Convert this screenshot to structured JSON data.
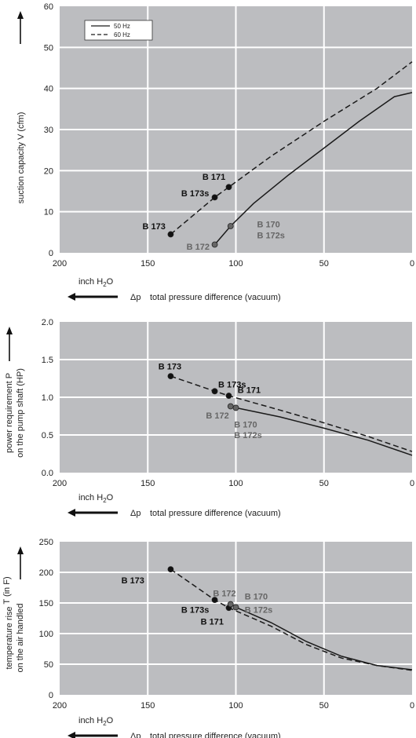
{
  "chart_data": [
    {
      "type": "line",
      "ylabel": "suction capacity V (cfm)",
      "xlabel_unit": "inch H2O",
      "xlabel_symbol": "Δp",
      "xlabel": "total pressure difference (vacuum)",
      "xlim": [
        200,
        0
      ],
      "ylim": [
        0,
        60
      ],
      "xticks": [
        "200",
        "150",
        "100",
        "50",
        "0"
      ],
      "yticks": [
        "0",
        "10",
        "20",
        "30",
        "40",
        "50",
        "60"
      ],
      "legend": [
        "50 Hz",
        "60 Hz"
      ],
      "legend_position": "top-left",
      "grid": true,
      "series": [
        {
          "name": "50 Hz",
          "style": "solid",
          "points": [
            [
              112,
              2
            ],
            [
              103,
              6.5
            ],
            [
              90,
              12
            ],
            [
              70,
              19
            ],
            [
              50,
              25.5
            ],
            [
              30,
              32
            ],
            [
              10,
              38
            ],
            [
              0,
              39
            ]
          ]
        },
        {
          "name": "60 Hz",
          "style": "dashed",
          "points": [
            [
              137,
              4.5
            ],
            [
              112,
              13.5
            ],
            [
              104,
              16
            ],
            [
              80,
              23.5
            ],
            [
              50,
              32
            ],
            [
              20,
              40
            ],
            [
              0,
              46.5
            ]
          ]
        }
      ],
      "markers": [
        {
          "x": 137,
          "y": 4.5,
          "color": "dark"
        },
        {
          "x": 112,
          "y": 13.5,
          "color": "dark"
        },
        {
          "x": 104,
          "y": 16,
          "color": "dark"
        },
        {
          "x": 112,
          "y": 2,
          "color": "grey"
        },
        {
          "x": 103,
          "y": 6.5,
          "color": "grey"
        }
      ],
      "labels": [
        {
          "text": "B 171",
          "x": 119,
          "y": 18.5,
          "color": "dark"
        },
        {
          "text": "B 173s",
          "x": 131,
          "y": 14.5,
          "color": "dark"
        },
        {
          "text": "B 173",
          "x": 153,
          "y": 6.5,
          "color": "dark"
        },
        {
          "text": "B 172",
          "x": 128,
          "y": 1.5,
          "color": "grey"
        },
        {
          "text": "B 170",
          "x": 88,
          "y": 7,
          "color": "grey"
        },
        {
          "text": "B 172s",
          "x": 88,
          "y": 4.3,
          "color": "grey"
        }
      ]
    },
    {
      "type": "line",
      "ylabel": "power requirement P on the pump shaft (HP)",
      "xlabel_unit": "inch H2O",
      "xlabel_symbol": "Δp",
      "xlabel": "total pressure difference (vacuum)",
      "xlim": [
        200,
        0
      ],
      "ylim": [
        0,
        2.0
      ],
      "xticks": [
        "200",
        "150",
        "100",
        "50",
        "0"
      ],
      "yticks": [
        "0.0",
        "0.5",
        "1.0",
        "1.5",
        "2.0"
      ],
      "grid": true,
      "series": [
        {
          "name": "50 Hz",
          "style": "solid",
          "points": [
            [
              103,
              0.88
            ],
            [
              100,
              0.86
            ],
            [
              75,
              0.74
            ],
            [
              50,
              0.59
            ],
            [
              25,
              0.43
            ],
            [
              0,
              0.23
            ]
          ]
        },
        {
          "name": "60 Hz",
          "style": "dashed",
          "points": [
            [
              137,
              1.28
            ],
            [
              112,
              1.08
            ],
            [
              104,
              1.02
            ],
            [
              75,
              0.83
            ],
            [
              50,
              0.66
            ],
            [
              25,
              0.48
            ],
            [
              0,
              0.28
            ]
          ]
        }
      ],
      "markers": [
        {
          "x": 137,
          "y": 1.28,
          "color": "dark"
        },
        {
          "x": 112,
          "y": 1.08,
          "color": "dark"
        },
        {
          "x": 104,
          "y": 1.02,
          "color": "dark"
        },
        {
          "x": 103,
          "y": 0.88,
          "color": "grey"
        },
        {
          "x": 100,
          "y": 0.86,
          "color": "grey"
        }
      ],
      "labels": [
        {
          "text": "B 173",
          "x": 144,
          "y": 1.41,
          "color": "dark"
        },
        {
          "text": "B 173s",
          "x": 110,
          "y": 1.17,
          "color": "dark"
        },
        {
          "text": "B 171",
          "x": 99,
          "y": 1.1,
          "color": "dark"
        },
        {
          "text": "B 172",
          "x": 117,
          "y": 0.76,
          "color": "grey"
        },
        {
          "text": "B 170",
          "x": 101,
          "y": 0.64,
          "color": "grey"
        },
        {
          "text": "B 172s",
          "x": 101,
          "y": 0.5,
          "color": "grey"
        }
      ]
    },
    {
      "type": "line",
      "ylabel": "temperature rise on the air handled",
      "ylabel2": "T (in F)",
      "xlabel_unit": "inch H2O",
      "xlabel_symbol": "Δp",
      "xlabel": "total pressure difference (vacuum)",
      "xlim": [
        200,
        0
      ],
      "ylim": [
        0,
        250
      ],
      "xticks": [
        "200",
        "150",
        "100",
        "50",
        "0"
      ],
      "yticks": [
        "0",
        "50",
        "100",
        "150",
        "200",
        "250"
      ],
      "grid": true,
      "series": [
        {
          "name": "50 Hz",
          "style": "solid",
          "points": [
            [
              103,
              148
            ],
            [
              100,
              143
            ],
            [
              80,
              118
            ],
            [
              60,
              87
            ],
            [
              40,
              63
            ],
            [
              20,
              48
            ],
            [
              0,
              41
            ]
          ]
        },
        {
          "name": "60 Hz",
          "style": "dashed",
          "points": [
            [
              137,
              205
            ],
            [
              112,
              155
            ],
            [
              104,
              142
            ],
            [
              80,
              112
            ],
            [
              60,
              82
            ],
            [
              40,
              60
            ],
            [
              20,
              48
            ],
            [
              0,
              40
            ]
          ]
        }
      ],
      "markers": [
        {
          "x": 137,
          "y": 205,
          "color": "dark"
        },
        {
          "x": 112,
          "y": 155,
          "color": "dark"
        },
        {
          "x": 104,
          "y": 142,
          "color": "dark"
        },
        {
          "x": 103,
          "y": 148,
          "color": "grey"
        },
        {
          "x": 100,
          "y": 143,
          "color": "grey"
        }
      ],
      "labels": [
        {
          "text": "B 173",
          "x": 165,
          "y": 187,
          "color": "dark"
        },
        {
          "text": "B 172",
          "x": 113,
          "y": 166,
          "color": "grey"
        },
        {
          "text": "B 170",
          "x": 95,
          "y": 161,
          "color": "grey"
        },
        {
          "text": "B 173s",
          "x": 131,
          "y": 139,
          "color": "dark"
        },
        {
          "text": "B 172s",
          "x": 95,
          "y": 139,
          "color": "grey"
        },
        {
          "text": "B 171",
          "x": 120,
          "y": 120,
          "color": "dark"
        }
      ]
    }
  ],
  "colors": {
    "plot_bg": "#bcbdc0",
    "grid": "#ffffff",
    "line": "#1a1a1a",
    "dark_label": "#111111",
    "grey_label": "#666666",
    "grey_marker": "#666666"
  }
}
